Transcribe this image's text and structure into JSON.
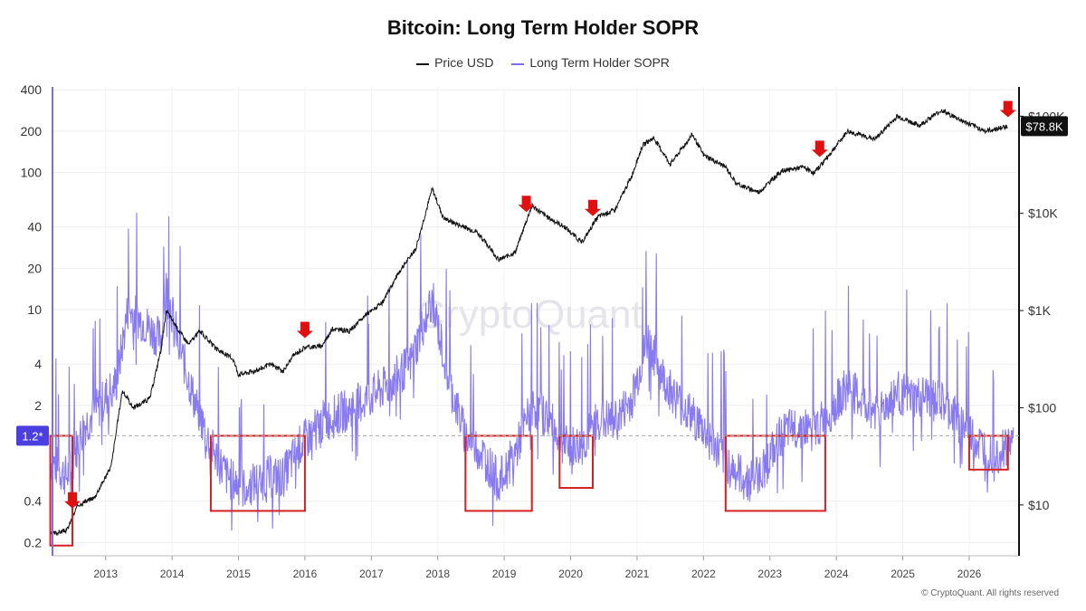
{
  "chart_data": {
    "type": "line",
    "title": "Bitcoin: Long Term Holder SOPR",
    "series": [
      {
        "name": "Price USD",
        "color": "#111111",
        "axis": "right-log",
        "points": [
          [
            "2012-03",
            5
          ],
          [
            "2012-06",
            5.5
          ],
          [
            "2012-08",
            10
          ],
          [
            "2012-11",
            12
          ],
          [
            "2013-02",
            25
          ],
          [
            "2013-04",
            150
          ],
          [
            "2013-06",
            100
          ],
          [
            "2013-09",
            125
          ],
          [
            "2013-11",
            400
          ],
          [
            "2013-12",
            1000
          ],
          [
            "2014-02",
            650
          ],
          [
            "2014-04",
            450
          ],
          [
            "2014-06",
            620
          ],
          [
            "2014-09",
            400
          ],
          [
            "2014-12",
            320
          ],
          [
            "2015-01",
            220
          ],
          [
            "2015-04",
            240
          ],
          [
            "2015-07",
            280
          ],
          [
            "2015-09",
            235
          ],
          [
            "2015-11",
            350
          ],
          [
            "2016-01",
            420
          ],
          [
            "2016-04",
            430
          ],
          [
            "2016-06",
            650
          ],
          [
            "2016-09",
            610
          ],
          [
            "2016-12",
            900
          ],
          [
            "2017-03",
            1200
          ],
          [
            "2017-06",
            2500
          ],
          [
            "2017-09",
            4300
          ],
          [
            "2017-12",
            18000
          ],
          [
            "2018-02",
            9000
          ],
          [
            "2018-05",
            7500
          ],
          [
            "2018-08",
            6500
          ],
          [
            "2018-11",
            4000
          ],
          [
            "2018-12",
            3300
          ],
          [
            "2019-03",
            4000
          ],
          [
            "2019-06",
            12000
          ],
          [
            "2019-09",
            9000
          ],
          [
            "2019-12",
            7200
          ],
          [
            "2020-03",
            5000
          ],
          [
            "2020-06",
            9300
          ],
          [
            "2020-09",
            10800
          ],
          [
            "2020-12",
            24000
          ],
          [
            "2021-02",
            50000
          ],
          [
            "2021-04",
            60000
          ],
          [
            "2021-07",
            32000
          ],
          [
            "2021-11",
            65000
          ],
          [
            "2022-01",
            40000
          ],
          [
            "2022-05",
            30000
          ],
          [
            "2022-07",
            20000
          ],
          [
            "2022-11",
            16500
          ],
          [
            "2023-03",
            27000
          ],
          [
            "2023-07",
            30000
          ],
          [
            "2023-09",
            26000
          ],
          [
            "2023-12",
            42000
          ],
          [
            "2024-03",
            70000
          ],
          [
            "2024-08",
            58000
          ],
          [
            "2024-12",
            100000
          ],
          [
            "2025-04",
            80000
          ],
          [
            "2025-08",
            115000
          ],
          [
            "2025-12",
            88000
          ],
          [
            "2026-04",
            70000
          ],
          [
            "2026-08",
            78800
          ]
        ]
      },
      {
        "name": "Long Term Holder SOPR",
        "color": "#7b6cf0",
        "axis": "left-log",
        "points": [
          [
            "2012-03",
            0.8
          ],
          [
            "2012-06",
            0.6
          ],
          [
            "2012-09",
            1.4
          ],
          [
            "2012-12",
            2.0
          ],
          [
            "2013-03",
            3.0
          ],
          [
            "2013-05",
            10
          ],
          [
            "2013-08",
            8
          ],
          [
            "2013-11",
            6
          ],
          [
            "2013-12",
            15
          ],
          [
            "2014-02",
            6
          ],
          [
            "2014-05",
            2.2
          ],
          [
            "2014-08",
            1.0
          ],
          [
            "2014-11",
            0.6
          ],
          [
            "2015-02",
            0.5
          ],
          [
            "2015-06",
            0.6
          ],
          [
            "2015-09",
            0.6
          ],
          [
            "2015-12",
            1.0
          ],
          [
            "2016-04",
            1.5
          ],
          [
            "2016-08",
            1.8
          ],
          [
            "2016-12",
            2.2
          ],
          [
            "2017-04",
            2.8
          ],
          [
            "2017-08",
            4
          ],
          [
            "2017-12",
            12
          ],
          [
            "2018-03",
            3
          ],
          [
            "2018-06",
            1.2
          ],
          [
            "2018-09",
            0.9
          ],
          [
            "2018-12",
            0.55
          ],
          [
            "2019-03",
            0.9
          ],
          [
            "2019-06",
            2.0
          ],
          [
            "2019-09",
            1.6
          ],
          [
            "2019-12",
            1.0
          ],
          [
            "2020-03",
            1.0
          ],
          [
            "2020-06",
            1.6
          ],
          [
            "2020-09",
            1.5
          ],
          [
            "2020-12",
            2.2
          ],
          [
            "2021-03",
            6
          ],
          [
            "2021-06",
            3
          ],
          [
            "2021-09",
            2.0
          ],
          [
            "2021-12",
            1.5
          ],
          [
            "2022-03",
            1.0
          ],
          [
            "2022-06",
            0.7
          ],
          [
            "2022-09",
            0.55
          ],
          [
            "2022-12",
            0.7
          ],
          [
            "2023-03",
            1.2
          ],
          [
            "2023-06",
            1.4
          ],
          [
            "2023-09",
            1.3
          ],
          [
            "2023-12",
            1.8
          ],
          [
            "2024-03",
            2.8
          ],
          [
            "2024-06",
            2.0
          ],
          [
            "2024-09",
            1.8
          ],
          [
            "2024-12",
            2.5
          ],
          [
            "2025-03",
            2.2
          ],
          [
            "2025-06",
            2.3
          ],
          [
            "2025-09",
            1.9
          ],
          [
            "2025-12",
            1.4
          ],
          [
            "2026-03",
            1.0
          ],
          [
            "2026-06",
            0.9
          ],
          [
            "2026-09",
            1.1
          ]
        ]
      }
    ],
    "x_ticks": [
      "2013",
      "2014",
      "2015",
      "2016",
      "2017",
      "2018",
      "2019",
      "2020",
      "2021",
      "2022",
      "2023",
      "2024",
      "2025",
      "2026"
    ],
    "left_axis": {
      "scale": "log",
      "range": [
        0.16,
        420
      ],
      "ticks": [
        0.2,
        0.4,
        2,
        4,
        10,
        20,
        40,
        100,
        200,
        400
      ],
      "tick_labels": [
        "0.2",
        "0.4",
        "2",
        "4",
        "10",
        "20",
        "40",
        "100",
        "200",
        "400"
      ]
    },
    "right_axis": {
      "scale": "log",
      "range": [
        3,
        200000
      ],
      "ticks": [
        10,
        100,
        1000,
        10000,
        100000
      ],
      "tick_labels": [
        "$10",
        "$100",
        "$1K",
        "$10K",
        "$100K"
      ]
    },
    "reference_line": {
      "value": 1.2,
      "label": "1.2*"
    },
    "last_price_label": "$78.8K",
    "highlight_boxes": [
      {
        "from": "2012-03",
        "to": "2012-07",
        "y_low": 0.19,
        "y_high": 1.2
      },
      {
        "from": "2014-08",
        "to": "2016-01",
        "y_low": 0.34,
        "y_high": 1.2
      },
      {
        "from": "2018-06",
        "to": "2019-06",
        "y_low": 0.34,
        "y_high": 1.2
      },
      {
        "from": "2019-11",
        "to": "2020-05",
        "y_low": 0.5,
        "y_high": 1.2
      },
      {
        "from": "2022-05",
        "to": "2023-11",
        "y_low": 0.34,
        "y_high": 1.2
      },
      {
        "from": "2026-01",
        "to": "2026-08",
        "y_low": 0.68,
        "y_high": 1.2
      }
    ],
    "arrow_markers": [
      "2012-07",
      "2016-01",
      "2019-05",
      "2020-05",
      "2023-10",
      "2026-08"
    ],
    "grid": true,
    "legend_position": "top-center"
  },
  "watermark": "CryptoQuant",
  "footer": "© CryptoQuant. All rights reserved"
}
